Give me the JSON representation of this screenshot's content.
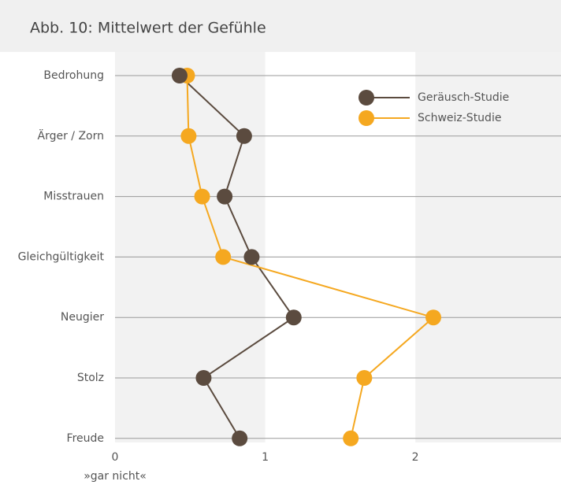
{
  "chart_data": {
    "type": "line",
    "title": "Abb. 10: Mittelwert der Gefühle",
    "categories": [
      "Bedrohung",
      "Ärger / Zorn",
      "Misstrauen",
      "Gleichgültigkeit",
      "Neugier",
      "Stolz",
      "Freude"
    ],
    "series": [
      {
        "name": "Geräusch-Studie",
        "color": "#5b4b3f",
        "values": [
          0.43,
          0.86,
          0.73,
          0.91,
          1.19,
          0.59,
          0.83
        ]
      },
      {
        "name": "Schweiz-Studie",
        "color": "#f5a820",
        "values": [
          0.48,
          0.49,
          0.58,
          0.72,
          2.12,
          1.66,
          1.57
        ]
      }
    ],
    "xlim": [
      0,
      2.97
    ],
    "xticks": [
      0,
      1,
      2
    ],
    "xlabel": "»gar nicht«",
    "grid": true,
    "legend": "upper right"
  }
}
